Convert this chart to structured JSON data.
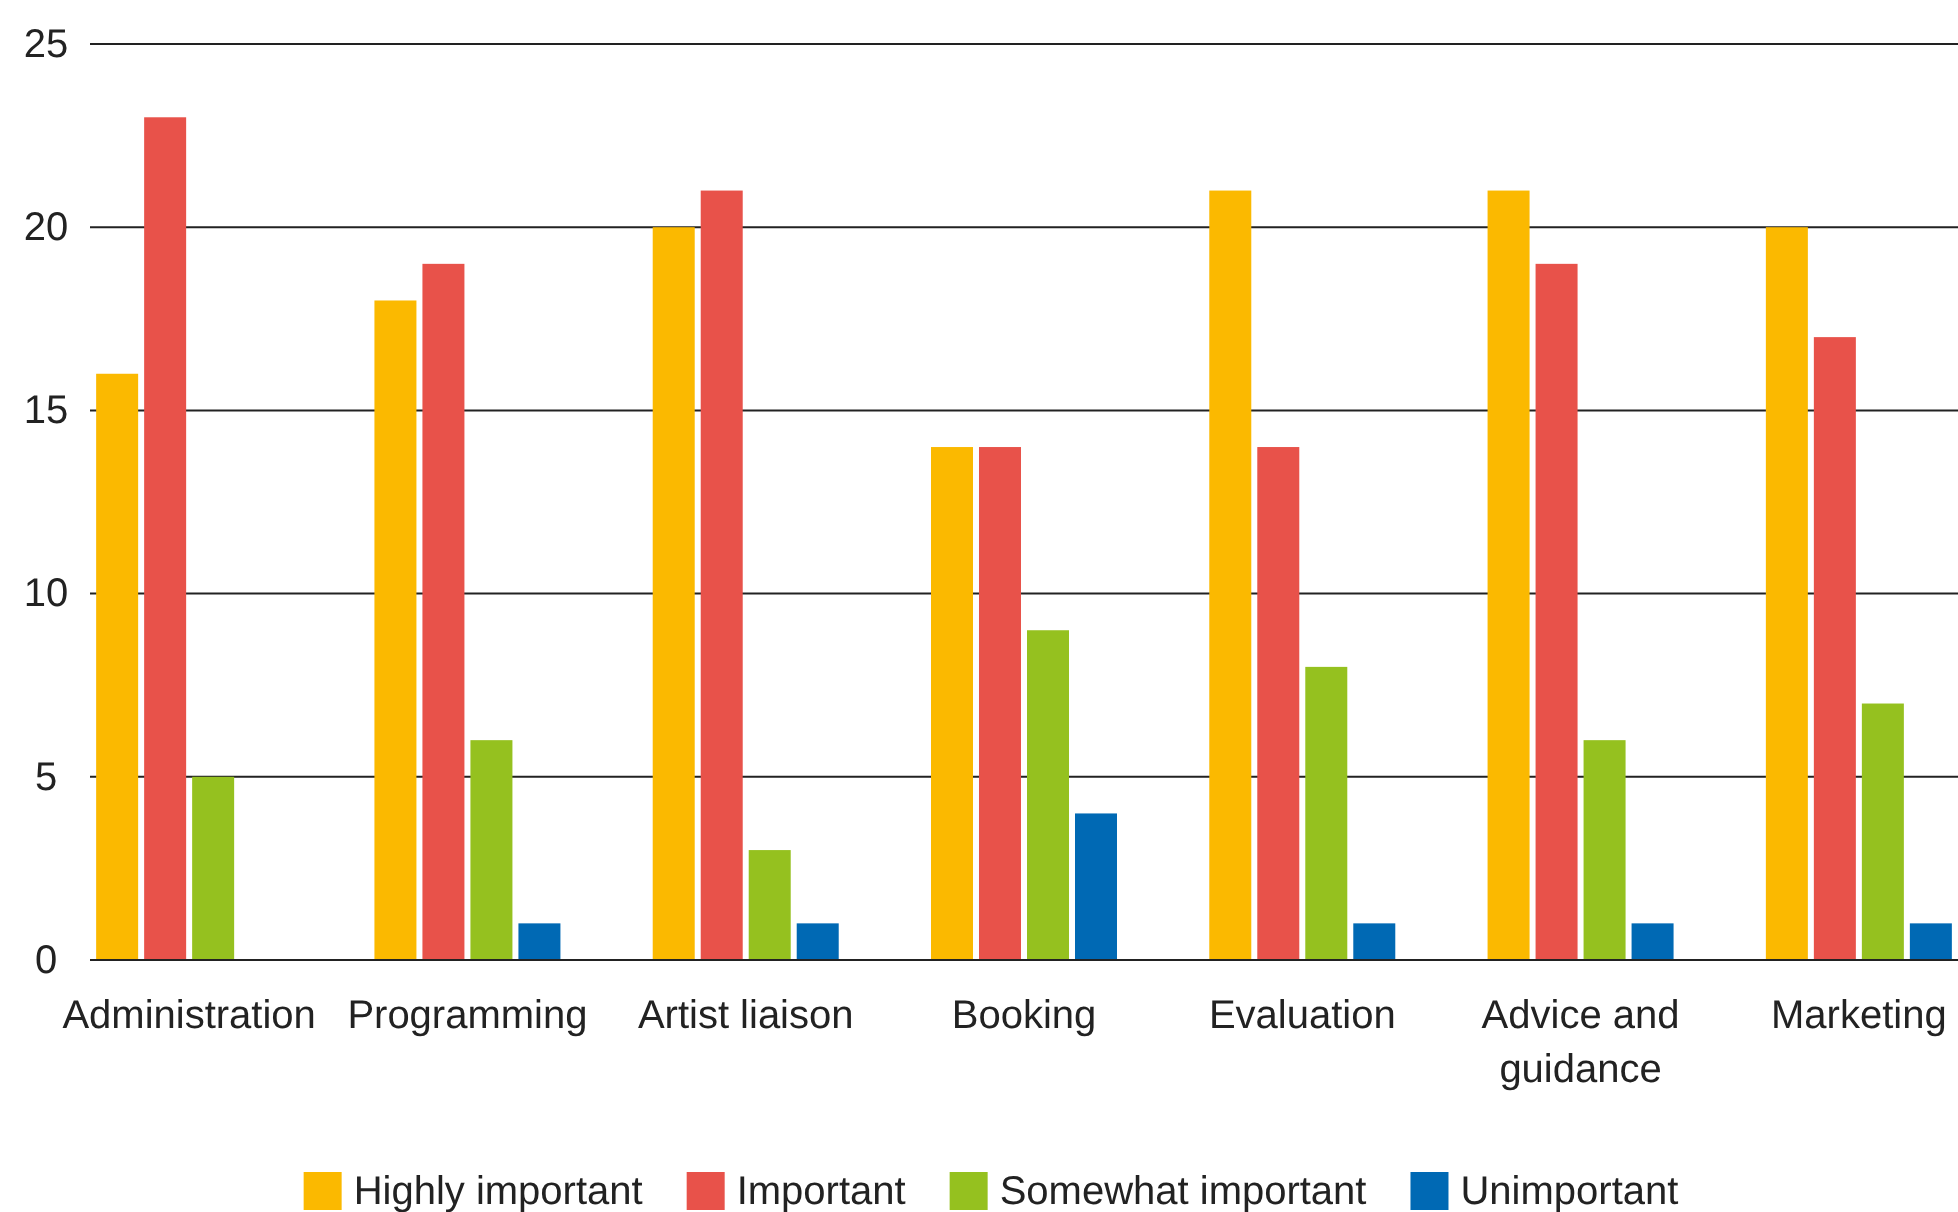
{
  "chart_data": {
    "type": "bar",
    "categories": [
      "Administration",
      "Programming",
      "Artist liaison",
      "Booking",
      "Evaluation",
      "Advice and guidance",
      "Marketing"
    ],
    "series": [
      {
        "name": "Highly important",
        "color": "#fbb900",
        "values": [
          16,
          18,
          20,
          14,
          21,
          21,
          20
        ]
      },
      {
        "name": "Important",
        "color": "#e8524a",
        "values": [
          23,
          19,
          21,
          14,
          14,
          19,
          17
        ]
      },
      {
        "name": "Somewhat important",
        "color": "#95c11f",
        "values": [
          5,
          6,
          3,
          9,
          8,
          6,
          7
        ]
      },
      {
        "name": "Unimportant",
        "color": "#0069b4",
        "values": [
          null,
          1,
          1,
          4,
          1,
          1,
          1
        ]
      }
    ],
    "ylim": [
      0,
      25
    ],
    "yticks": [
      0,
      5,
      10,
      15,
      20,
      25
    ],
    "grid": "y",
    "legend": "bottom"
  }
}
